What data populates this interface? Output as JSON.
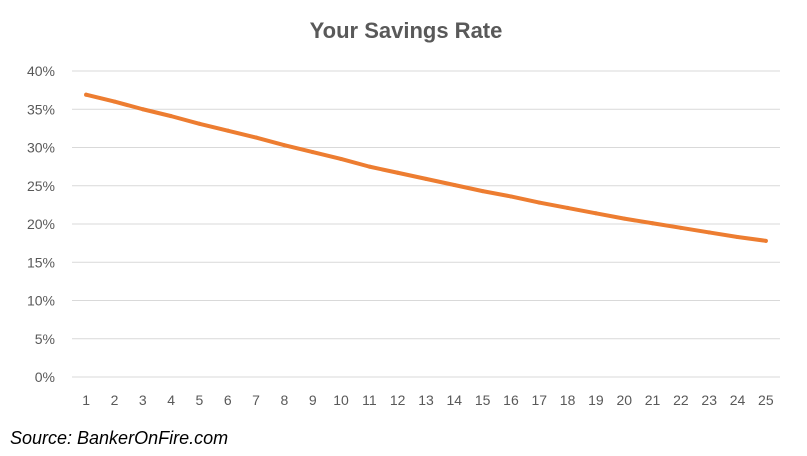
{
  "chart_data": {
    "type": "line",
    "title": "Your Savings Rate",
    "xlabel": "",
    "ylabel": "",
    "x": [
      1,
      2,
      3,
      4,
      5,
      6,
      7,
      8,
      9,
      10,
      11,
      12,
      13,
      14,
      15,
      16,
      17,
      18,
      19,
      20,
      21,
      22,
      23,
      24,
      25
    ],
    "series": [
      {
        "values": [
          0.369,
          0.36,
          0.35,
          0.341,
          0.331,
          0.322,
          0.313,
          0.303,
          0.294,
          0.285,
          0.275,
          0.267,
          0.259,
          0.251,
          0.243,
          0.236,
          0.228,
          0.221,
          0.214,
          0.207,
          0.201,
          0.195,
          0.189,
          0.183,
          0.178
        ],
        "color": "#ED7D31"
      }
    ],
    "ylim": [
      0,
      0.4
    ],
    "yticks": [
      0,
      0.05,
      0.1,
      0.15,
      0.2,
      0.25,
      0.3,
      0.35,
      0.4
    ],
    "ytick_labels": [
      "0%",
      "5%",
      "10%",
      "15%",
      "20%",
      "25%",
      "30%",
      "35%",
      "40%"
    ],
    "xtick_labels": [
      "1",
      "2",
      "3",
      "4",
      "5",
      "6",
      "7",
      "8",
      "9",
      "10",
      "11",
      "12",
      "13",
      "14",
      "15",
      "16",
      "17",
      "18",
      "19",
      "20",
      "21",
      "22",
      "23",
      "24",
      "25"
    ],
    "grid": true,
    "legend": "none"
  },
  "source_note": "Source: BankerOnFire.com",
  "colors": {
    "line": "#ED7D31",
    "grid": "#D9D9D9",
    "text": "#595959"
  }
}
